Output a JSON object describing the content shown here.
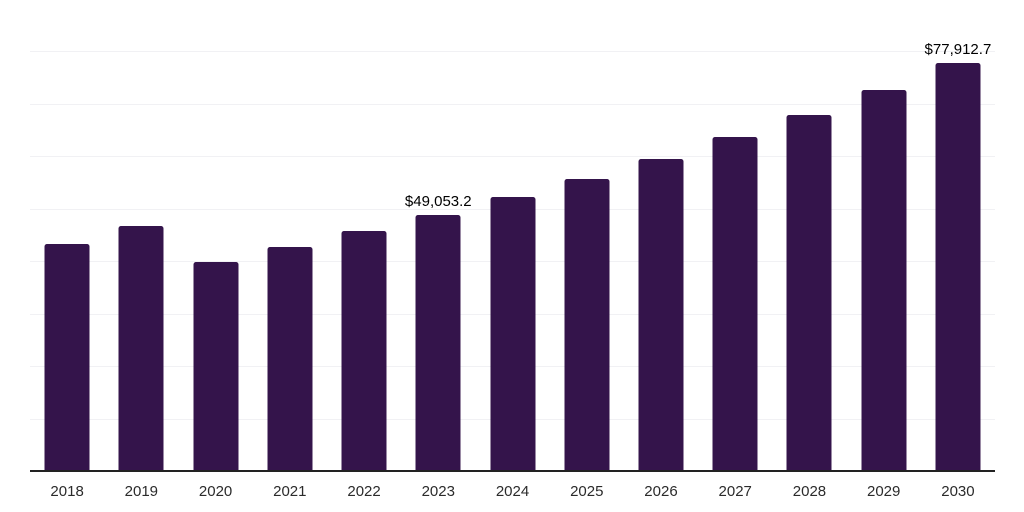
{
  "chart_data": {
    "type": "bar",
    "title": "",
    "xlabel": "",
    "ylabel": "",
    "categories": [
      "2018",
      "2019",
      "2020",
      "2021",
      "2022",
      "2023",
      "2024",
      "2025",
      "2026",
      "2027",
      "2028",
      "2029",
      "2030"
    ],
    "values": [
      43500,
      47000,
      40000,
      42900,
      46000,
      49053.2,
      52400,
      55900,
      59700,
      63800,
      68100,
      72800,
      77912.7
    ],
    "value_labels": {
      "2023": "$49,053.2",
      "2030": "$77,912.7"
    },
    "ylim": [
      0,
      90000
    ],
    "gridline_step": 10000,
    "grid": "horizontal",
    "legend": "none",
    "colors": {
      "bar": "#34144b",
      "gridline": "#f1f1f4",
      "axis_line": "#222222",
      "tick_label": "#2b2b2b",
      "value_label": "#000000",
      "background": "#ffffff"
    }
  }
}
